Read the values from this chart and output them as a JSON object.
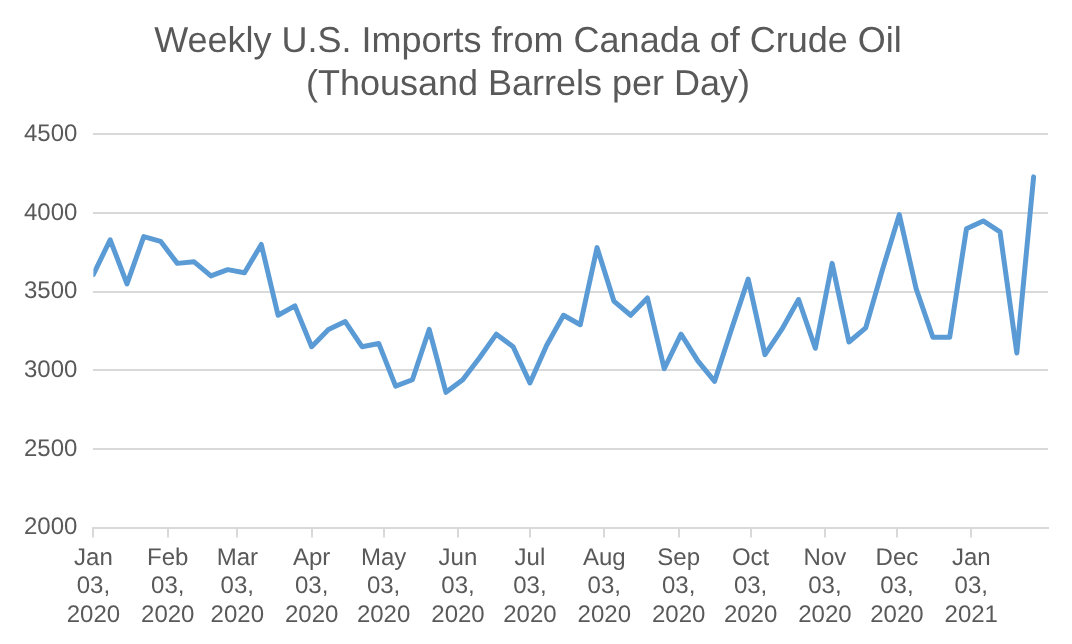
{
  "chart_data": {
    "type": "line",
    "title": "Weekly U.S. Imports from Canada of Crude Oil",
    "subtitle": "(Thousand Barrels per Day)",
    "x": [
      "2020-01-03",
      "2020-01-10",
      "2020-01-17",
      "2020-01-24",
      "2020-01-31",
      "2020-02-07",
      "2020-02-14",
      "2020-02-21",
      "2020-02-28",
      "2020-03-06",
      "2020-03-13",
      "2020-03-20",
      "2020-03-27",
      "2020-04-03",
      "2020-04-10",
      "2020-04-17",
      "2020-04-24",
      "2020-05-01",
      "2020-05-08",
      "2020-05-15",
      "2020-05-22",
      "2020-05-29",
      "2020-06-05",
      "2020-06-12",
      "2020-06-19",
      "2020-06-26",
      "2020-07-03",
      "2020-07-10",
      "2020-07-17",
      "2020-07-24",
      "2020-07-31",
      "2020-08-07",
      "2020-08-14",
      "2020-08-21",
      "2020-08-28",
      "2020-09-04",
      "2020-09-11",
      "2020-09-18",
      "2020-09-25",
      "2020-10-02",
      "2020-10-09",
      "2020-10-16",
      "2020-10-23",
      "2020-10-30",
      "2020-11-06",
      "2020-11-13",
      "2020-11-20",
      "2020-11-27",
      "2020-12-04",
      "2020-12-11",
      "2020-12-18",
      "2020-12-25",
      "2021-01-01",
      "2021-01-08",
      "2021-01-15",
      "2021-01-22",
      "2021-01-29"
    ],
    "series": [
      {
        "color": "#5b9bd5",
        "values": [
          3610,
          3830,
          3550,
          3850,
          3820,
          3680,
          3690,
          3600,
          3640,
          3620,
          3800,
          3350,
          3410,
          3150,
          3260,
          3310,
          3150,
          3170,
          2900,
          2940,
          3260,
          2860,
          2940,
          3080,
          3230,
          3150,
          2920,
          3160,
          3350,
          3290,
          3780,
          3440,
          3350,
          3460,
          3010,
          3230,
          3060,
          2930,
          3260,
          3580,
          3100,
          3260,
          3450,
          3140,
          3680,
          3180,
          3270,
          3640,
          3990,
          3520,
          3210,
          3210,
          3900,
          3950,
          3880,
          3110,
          4230
        ]
      }
    ],
    "xlim": [
      "2020-01-03",
      "2021-02-04"
    ],
    "xticks": [
      {
        "value": "2020-01-03",
        "label": "Jan 03, 2020"
      },
      {
        "value": "2020-02-03",
        "label": "Feb 03, 2020"
      },
      {
        "value": "2020-03-03",
        "label": "Mar 03, 2020"
      },
      {
        "value": "2020-04-03",
        "label": "Apr 03, 2020"
      },
      {
        "value": "2020-05-03",
        "label": "May 03, 2020"
      },
      {
        "value": "2020-06-03",
        "label": "Jun 03, 2020"
      },
      {
        "value": "2020-07-03",
        "label": "Jul 03, 2020"
      },
      {
        "value": "2020-08-03",
        "label": "Aug 03, 2020"
      },
      {
        "value": "2020-09-03",
        "label": "Sep 03, 2020"
      },
      {
        "value": "2020-10-03",
        "label": "Oct 03, 2020"
      },
      {
        "value": "2020-11-03",
        "label": "Nov 03, 2020"
      },
      {
        "value": "2020-12-03",
        "label": "Dec 03, 2020"
      },
      {
        "value": "2021-01-03",
        "label": "Jan 03, 2021"
      }
    ],
    "ylim": [
      2000,
      4500
    ],
    "yticks": [
      2000,
      2500,
      3000,
      3500,
      4000,
      4500
    ],
    "grid": "y",
    "marker": "none",
    "line_style": "solid"
  }
}
